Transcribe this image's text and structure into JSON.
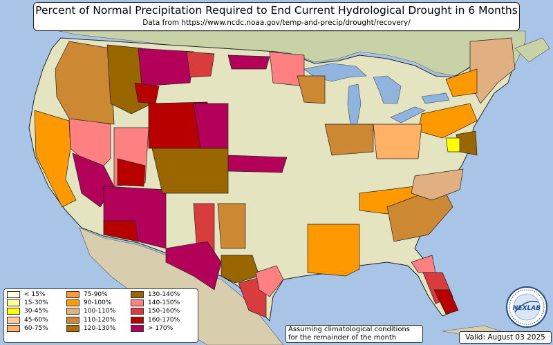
{
  "title": "Percent of Normal Precipitation Required to End Current Hydrological Drought in 6 Months",
  "subtitle": "Data from https://www.ncdc.noaa.gov/temp-and-precip/drought/recovery/",
  "note_line1": "Assuming climatological conditions",
  "note_line2": "for the remainder of the month",
  "valid": "Valid: August 03 2025",
  "logo_text": "NEXLAB",
  "colors": {
    "ocean": "#a8c4e6",
    "land": "#e4e4c0",
    "canada": "#c7d3a6",
    "mexico": "#d8ceae",
    "lake": "#8fb4de",
    "border": "#222222"
  },
  "legend": [
    {
      "label": "< 15%",
      "color": "#ffffe0"
    },
    {
      "label": "15-30%",
      "color": "#ffff99"
    },
    {
      "label": "30-45%",
      "color": "#ffff00"
    },
    {
      "label": "45-60%",
      "color": "#ffcc99"
    },
    {
      "label": "60-75%",
      "color": "#ffb266"
    },
    {
      "label": "75-90%",
      "color": "#ff9933"
    },
    {
      "label": "90-100%",
      "color": "#ff9900"
    },
    {
      "label": "100-110%",
      "color": "#e0b080"
    },
    {
      "label": "110-120%",
      "color": "#cc8833"
    },
    {
      "label": "120-130%",
      "color": "#b07000"
    },
    {
      "label": "130-140%",
      "color": "#996600"
    },
    {
      "label": "140-150%",
      "color": "#ff8080"
    },
    {
      "label": "150-160%",
      "color": "#d93c3c"
    },
    {
      "label": "160-170%",
      "color": "#b80000"
    },
    {
      "label": "> 170%",
      "color": "#b30059"
    }
  ]
}
